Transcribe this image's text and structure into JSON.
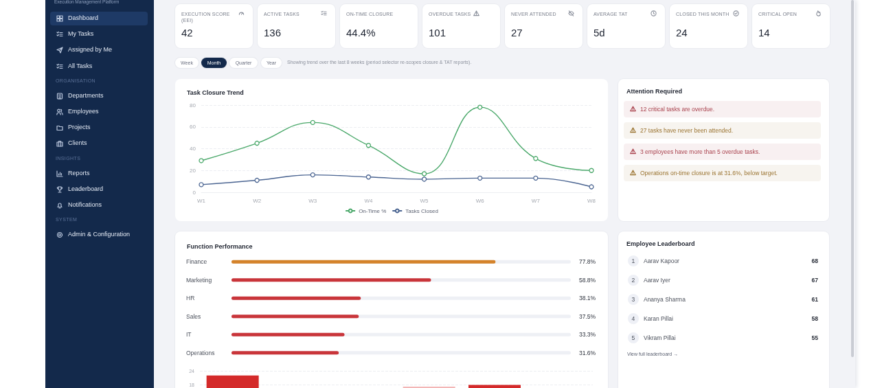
{
  "chart_data": [
    {
      "type": "other",
      "title": "Execution Management Platform",
      "categories": [
        "Dashboard",
        "My Tasks",
        "Assigned by Me",
        "All Tasks",
        "Departments",
        "Employees",
        "Projects",
        "Clients",
        "Reports",
        "Leaderboard",
        "Notifications",
        "Admin & Configuration"
      ],
      "annotations": [
        "ORGANISATION",
        "INSIGHTS",
        "SYSTEM"
      ]
    },
    {
      "type": "other",
      "categories": [
        "EXECUTION SCORE (EEI)",
        "ACTIVE TASKS",
        "ON-TIME CLOSURE",
        "OVERDUE TASKS",
        "NEVER ATTENDED",
        "AVERAGE TAT",
        "CLOSED THIS MONTH",
        "CRITICAL OPEN"
      ],
      "value_labels": [
        "42",
        "136",
        "44.4%",
        "101",
        "27",
        "5d",
        "24",
        "14"
      ]
    },
    {
      "type": "other",
      "categories": [
        "Week",
        "Month",
        "Quarter",
        "Year"
      ],
      "subtitle": "Showing trend over the last 8 weeks (period selector re-scopes closure & TAT reports)."
    },
    {
      "type": "line",
      "title": "Task Closure Trend",
      "categories": [
        "W1",
        "W2",
        "W3",
        "W4",
        "W5",
        "W6",
        "W7",
        "W8"
      ],
      "series": [
        {
          "name": "On-Time %",
          "color": "#4aa86a",
          "values": [
            29,
            45,
            64,
            43,
            17,
            78,
            31,
            20
          ]
        },
        {
          "name": "Tasks Closed",
          "color": "#4a6491",
          "values": [
            7,
            11,
            16,
            14,
            12,
            13,
            13,
            5
          ]
        }
      ],
      "ylim": [
        0,
        80
      ],
      "yticks": [
        0,
        20,
        40,
        60,
        80
      ],
      "grid": "y",
      "legend": "bottom",
      "marker": "circle"
    },
    {
      "type": "other",
      "title": "Attention Required",
      "annotations": [
        "12 critical tasks are overdue.",
        "27 tasks have never been attended.",
        "3 employees have more than 5 overdue tasks.",
        "Operations on-time closure is at 31.6%, below target."
      ],
      "colors": [
        "#a8404c",
        "#9a7330",
        "#a8404c",
        "#9a7330"
      ]
    },
    {
      "type": "bar",
      "orientation": "horizontal",
      "title": "Function Performance",
      "categories": [
        "Finance",
        "Marketing",
        "HR",
        "Sales",
        "IT",
        "Operations"
      ],
      "values": [
        77.8,
        58.8,
        38.1,
        37.5,
        33.3,
        31.6
      ],
      "colors": [
        "#d4822a",
        "#c9353a",
        "#c9353a",
        "#c9353a",
        "#c9353a",
        "#c9353a"
      ],
      "value_labels": [
        "77.8%",
        "58.8%",
        "38.1%",
        "37.5%",
        "33.3%",
        "31.6%"
      ],
      "xlim": [
        0,
        100
      ]
    },
    {
      "type": "bar",
      "categories": [
        null,
        null,
        null,
        null,
        null,
        null
      ],
      "values": [
        22,
        null,
        null,
        17.3,
        18,
        null
      ],
      "colors": [
        "#d42a2a",
        "#d42a2a",
        "#d42a2a",
        "#f3b6b6",
        "#d42a2a",
        "#d42a2a"
      ],
      "ylim": [
        16,
        24
      ],
      "yticks": [
        18,
        24
      ],
      "grid": "y",
      "tick_labels": "y"
    },
    {
      "type": "other",
      "title": "Employee Leaderboard",
      "categories": [
        "Aarav Kapoor",
        "Aarav Iyer",
        "Ananya Sharma",
        "Karan Pillai",
        "Vikram Pillai"
      ],
      "y_categories": [
        "1",
        "2",
        "3",
        "4",
        "5"
      ],
      "values": [
        68,
        67,
        61,
        58,
        55
      ],
      "data_labels": true,
      "annotations": [
        "View full leaderboard →"
      ]
    }
  ]
}
